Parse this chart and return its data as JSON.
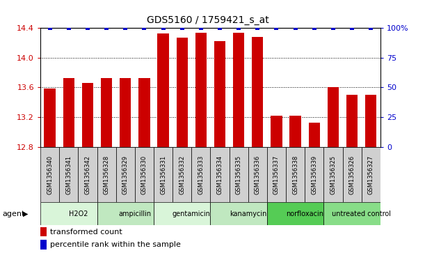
{
  "title": "GDS5160 / 1759421_s_at",
  "samples": [
    "GSM1356340",
    "GSM1356341",
    "GSM1356342",
    "GSM1356328",
    "GSM1356329",
    "GSM1356330",
    "GSM1356331",
    "GSM1356332",
    "GSM1356333",
    "GSM1356334",
    "GSM1356335",
    "GSM1356336",
    "GSM1356337",
    "GSM1356338",
    "GSM1356339",
    "GSM1356325",
    "GSM1356326",
    "GSM1356327"
  ],
  "values": [
    13.58,
    13.72,
    13.66,
    13.72,
    13.72,
    13.72,
    14.32,
    14.27,
    14.33,
    14.22,
    14.33,
    14.28,
    13.22,
    13.22,
    13.12,
    13.6,
    13.5,
    13.5
  ],
  "percentile_ranks": [
    100,
    100,
    100,
    100,
    100,
    100,
    100,
    100,
    100,
    100,
    100,
    100,
    100,
    100,
    100,
    100,
    100,
    100
  ],
  "agents": [
    {
      "name": "H2O2",
      "start": 0,
      "end": 3,
      "color": "#d9f5d9"
    },
    {
      "name": "ampicillin",
      "start": 3,
      "end": 6,
      "color": "#c0e8c0"
    },
    {
      "name": "gentamicin",
      "start": 6,
      "end": 9,
      "color": "#d9f5d9"
    },
    {
      "name": "kanamycin",
      "start": 9,
      "end": 12,
      "color": "#c0e8c0"
    },
    {
      "name": "norfloxacin",
      "start": 12,
      "end": 15,
      "color": "#55cc55"
    },
    {
      "name": "untreated control",
      "start": 15,
      "end": 18,
      "color": "#88dd88"
    }
  ],
  "bar_color": "#cc0000",
  "dot_color": "#0000cc",
  "ylim": [
    12.8,
    14.4
  ],
  "yticks": [
    12.8,
    13.2,
    13.6,
    14.0,
    14.4
  ],
  "right_yticks": [
    0,
    25,
    50,
    75,
    100
  ],
  "right_ytick_labels": [
    "0",
    "25",
    "50",
    "75",
    "100%"
  ],
  "grid_values": [
    13.2,
    13.6,
    14.0,
    14.4
  ],
  "agent_label": "agent",
  "legend_transformed": "transformed count",
  "legend_percentile": "percentile rank within the sample",
  "background_color": "#ffffff",
  "sample_box_color": "#d0d0d0"
}
